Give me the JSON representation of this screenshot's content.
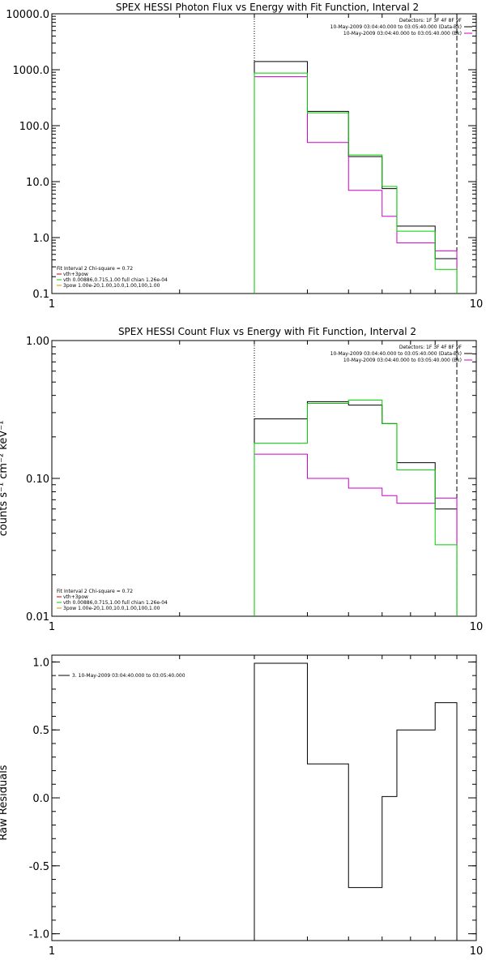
{
  "chart_data": [
    {
      "type": "line",
      "title": "SPEX HESSI Photon Flux vs Energy with Fit Function, Interval 2",
      "xscale": "log",
      "yscale": "log",
      "xlim": [
        1,
        10
      ],
      "ylim": [
        0.1,
        10000
      ],
      "xticks": [
        "1",
        "10"
      ],
      "yticks": [
        "0.1",
        "1.0",
        "10.0",
        "100.0",
        "1000.0",
        "10000.0"
      ],
      "ylabel": "",
      "vlines": [
        {
          "x": 3.0,
          "style": "dotted"
        },
        {
          "x": 9.0,
          "style": "dashed"
        }
      ],
      "legend_top": [
        {
          "text": "Detectors: 1F 3F 4F 8F 9F",
          "color": ""
        },
        {
          "text": "10-May-2009 03:04:40.000 to 03:05:40.000 (Data-Bk)",
          "color": "#000000"
        },
        {
          "text": "10-May-2009 03:04:40.000 to 03:05:40.000 (Bk)",
          "color": "#cc00cc"
        }
      ],
      "legend_bottom": [
        {
          "text": "Fit Interval 2   Chi-square = 0.72",
          "color": ""
        },
        {
          "text": "vth+3pow",
          "color": "#cc0000"
        },
        {
          "text": "vth 0.00886,0.715,1.00   full chian 1.26e-04",
          "color": "#00cc00"
        },
        {
          "text": "3pow 1.00e-20,1.00,10.0,1.00,100,1.00",
          "color": "#cc9900"
        }
      ],
      "edges": [
        3.0,
        3.5,
        4.0,
        4.5,
        5.0,
        5.5,
        6.0,
        6.5,
        7.0,
        8.0,
        9.0
      ],
      "series": [
        {
          "color": "#000000",
          "values": [
            1400,
            1400,
            180,
            180,
            28,
            28,
            7.5,
            1.6,
            1.6,
            0.42
          ]
        },
        {
          "color": "#cc00cc",
          "values": [
            750,
            750,
            50,
            50,
            7,
            7,
            2.4,
            0.8,
            0.8,
            0.58
          ]
        },
        {
          "color": "#00cc00",
          "values": [
            870,
            870,
            170,
            170,
            30,
            30,
            8.2,
            1.3,
            1.3,
            0.27
          ]
        }
      ]
    },
    {
      "type": "line",
      "title": "SPEX HESSI Count Flux vs Energy with Fit Function, Interval 2",
      "xscale": "log",
      "yscale": "log",
      "xlim": [
        1,
        10
      ],
      "ylim": [
        0.01,
        1
      ],
      "xticks": [
        "1",
        "10"
      ],
      "yticks": [
        "0.01",
        "0.10",
        "1.00"
      ],
      "ylabel": "counts s⁻¹ cm⁻² keV⁻¹",
      "vlines": [
        {
          "x": 3.0,
          "style": "dotted"
        },
        {
          "x": 9.0,
          "style": "dashed"
        }
      ],
      "legend_top": [
        {
          "text": "Detectors: 1F 3F 4F 8F 9F",
          "color": ""
        },
        {
          "text": "10-May-2009 03:04:40.000 to 03:05:40.000 (Data-Bk)",
          "color": "#000000"
        },
        {
          "text": "10-May-2009 03:04:40.000 to 03:05:40.000 (Bk)",
          "color": "#cc00cc"
        }
      ],
      "legend_bottom": [
        {
          "text": "Fit Interval 2   Chi-square = 0.72",
          "color": ""
        },
        {
          "text": "vth+3pow",
          "color": "#cc0000"
        },
        {
          "text": "vth 0.00886,0.715,1.00   full chian 1.26e-04",
          "color": "#00cc00"
        },
        {
          "text": "3pow 1.00e-20,1.00,10.0,1.00,100,1.00",
          "color": "#cc9900"
        }
      ],
      "edges": [
        3.0,
        3.5,
        4.0,
        4.5,
        5.0,
        5.5,
        6.0,
        6.5,
        7.0,
        8.0,
        9.0
      ],
      "series": [
        {
          "color": "#000000",
          "values": [
            0.27,
            0.27,
            0.36,
            0.36,
            0.34,
            0.34,
            0.25,
            0.13,
            0.13,
            0.06
          ]
        },
        {
          "color": "#cc00cc",
          "values": [
            0.15,
            0.15,
            0.1,
            0.1,
            0.085,
            0.085,
            0.075,
            0.066,
            0.066,
            0.072
          ]
        },
        {
          "color": "#00cc00",
          "values": [
            0.18,
            0.18,
            0.35,
            0.35,
            0.37,
            0.37,
            0.25,
            0.115,
            0.115,
            0.033
          ]
        }
      ]
    },
    {
      "type": "line",
      "title": "",
      "xscale": "log",
      "yscale": "linear",
      "xlim": [
        1,
        10
      ],
      "ylim": [
        -1.05,
        1.05
      ],
      "xticks": [
        "1",
        "10"
      ],
      "yticks": [
        "-1.0",
        "-0.5",
        "0.0",
        "0.5",
        "1.0"
      ],
      "ylabel": "Raw Residuals",
      "legend_top_left": "3. 10-May-2009 03:04:40.000 to 03:05:40.000",
      "edges": [
        3.0,
        3.5,
        4.0,
        4.5,
        5.0,
        5.5,
        6.0,
        6.5,
        7.0,
        8.0,
        9.0
      ],
      "series": [
        {
          "color": "#000000",
          "values": [
            0.99,
            0.99,
            0.25,
            0.25,
            -0.66,
            -0.66,
            0.01,
            0.5,
            0.5,
            0.7
          ]
        }
      ]
    }
  ]
}
